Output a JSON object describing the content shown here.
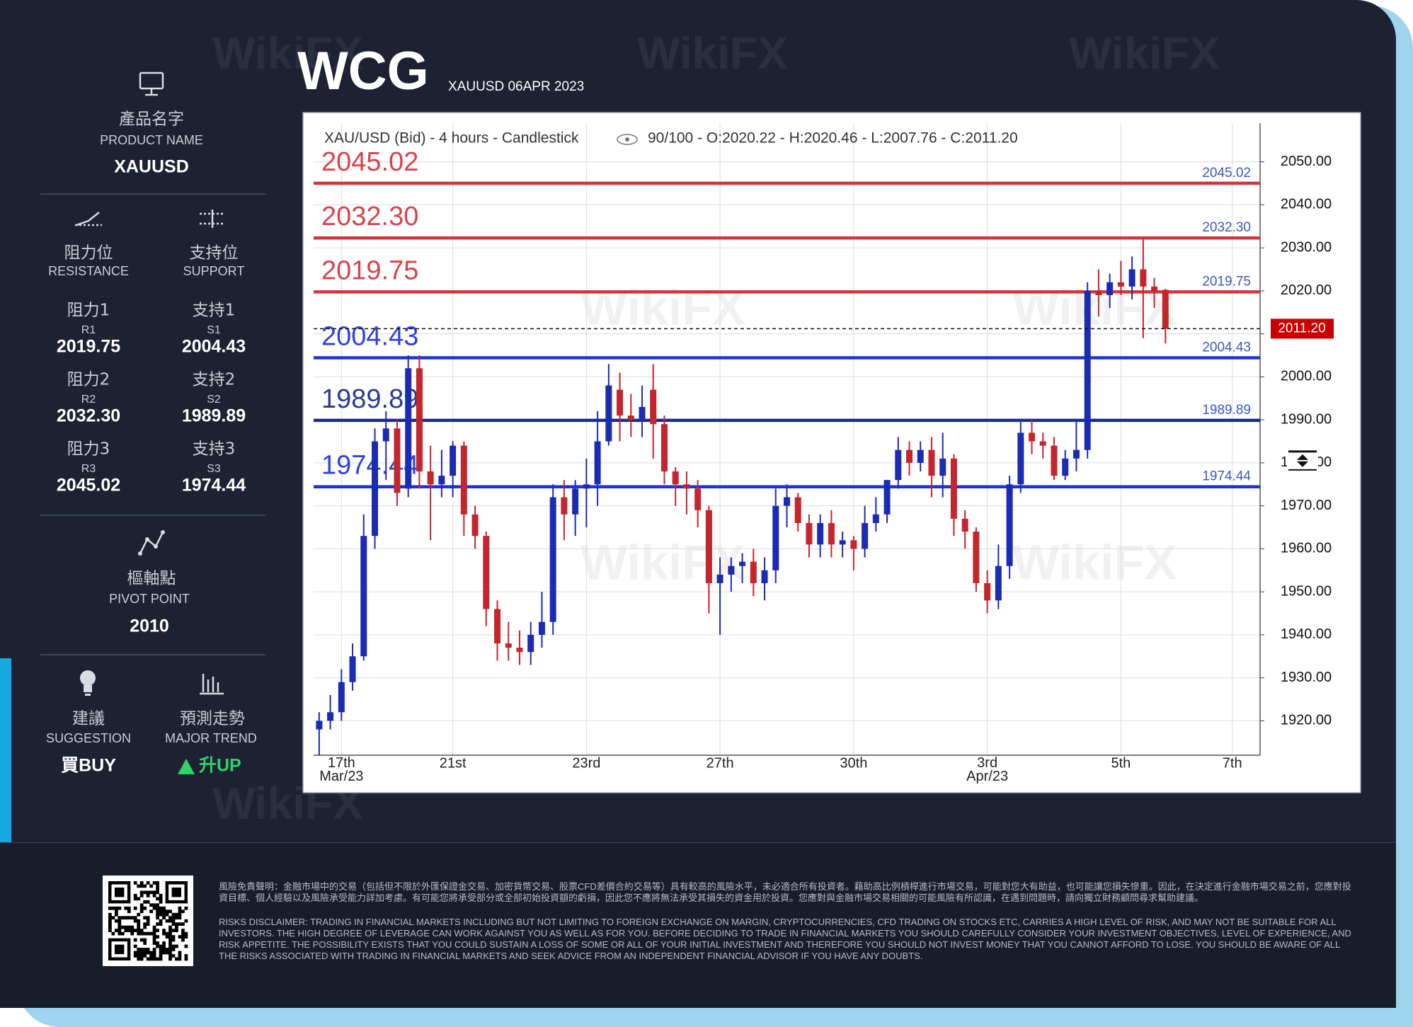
{
  "header": {
    "logo": "WCG",
    "subtitle": "XAUUSD 06APR 2023"
  },
  "watermark": "WikiFX",
  "sidebar": {
    "product": {
      "label_zh": "產品名字",
      "label_en": "PRODUCT NAME",
      "value": "XAUUSD"
    },
    "resistance": {
      "label_zh": "阻力位",
      "label_en": "RESISTANCE",
      "levels": [
        {
          "label_zh": "阻力1",
          "code": "R1",
          "value": "2019.75"
        },
        {
          "label_zh": "阻力2",
          "code": "R2",
          "value": "2032.30"
        },
        {
          "label_zh": "阻力3",
          "code": "R3",
          "value": "2045.02"
        }
      ]
    },
    "support": {
      "label_zh": "支持位",
      "label_en": "SUPPORT",
      "levels": [
        {
          "label_zh": "支持1",
          "code": "S1",
          "value": "2004.43"
        },
        {
          "label_zh": "支持2",
          "code": "S2",
          "value": "1989.89"
        },
        {
          "label_zh": "支持3",
          "code": "S3",
          "value": "1974.44"
        }
      ]
    },
    "pivot": {
      "label_zh": "樞軸點",
      "label_en": "PIVOT POINT",
      "value": "2010"
    },
    "suggestion": {
      "label_zh": "建議",
      "label_en": "SUGGESTION",
      "value": "買BUY"
    },
    "trend": {
      "label_zh": "預測走勢",
      "label_en": "MAJOR TREND",
      "value": "升UP"
    }
  },
  "chart_data": {
    "type": "candlestick",
    "title": "XAU/USD (Bid) - 4 hours - Candlestick",
    "subtitle": "90/100 - O:2020.22 - H:2020.46 - L:2007.76 - C:2011.20",
    "categories": [
      null,
      null,
      "17th\nMar/23",
      null,
      null,
      null,
      null,
      null,
      null,
      null,
      null,
      null,
      "21st",
      null,
      null,
      null,
      null,
      null,
      null,
      null,
      null,
      null,
      null,
      null,
      "23rd",
      null,
      null,
      null,
      null,
      null,
      null,
      null,
      null,
      null,
      null,
      null,
      "27th",
      null,
      null,
      null,
      null,
      null,
      null,
      null,
      null,
      null,
      null,
      null,
      "30th",
      null,
      null,
      null,
      null,
      null,
      null,
      null,
      null,
      null,
      null,
      null,
      "3rd\nApr/23",
      null,
      null,
      null,
      null,
      null,
      null,
      null,
      null,
      null,
      null,
      null,
      "5th",
      null,
      null,
      null,
      null,
      null,
      null,
      null,
      null,
      null,
      "7th",
      null,
      null
    ],
    "open": [
      1918,
      1920,
      1922,
      1929,
      1935,
      1963,
      1985,
      1988,
      1974,
      2002,
      1978,
      1975,
      1977,
      1984,
      1968,
      1963,
      1946,
      1938,
      1937,
      1936,
      1940,
      1943,
      1972,
      1968,
      1974,
      1975,
      1985,
      1997,
      1991,
      1990,
      1997,
      1989,
      1978,
      1975,
      1974,
      1969,
      1952,
      1954,
      1956,
      1957,
      1952,
      1955,
      1970,
      1972,
      1966,
      1961,
      1966,
      1961,
      1962,
      1960,
      1966,
      1968,
      1976,
      1983,
      1980,
      1983,
      1977,
      1981,
      1967,
      1964,
      1952,
      1948,
      1956,
      1975,
      1987,
      1985,
      1984,
      1977,
      1981,
      1983,
      2020,
      2019,
      2022,
      2021,
      2025,
      2021,
      2020.22,
      null,
      null,
      null,
      null,
      null,
      null,
      null,
      null
    ],
    "high": [
      1922,
      1926,
      1932,
      1938,
      1968,
      1988,
      1992,
      1990,
      2005,
      2005,
      1984,
      1983,
      1985,
      1985,
      1970,
      1964,
      1948,
      1943,
      1941,
      1943,
      1950,
      1975,
      1976,
      1976,
      1981,
      1992,
      2003,
      2001,
      1996,
      1998,
      2003,
      1991,
      1979,
      1978,
      1976,
      1970,
      1958,
      1958,
      1959,
      1960,
      1958,
      1974,
      1975,
      1973,
      1968,
      1968,
      1969,
      1964,
      1963,
      1970,
      1972,
      1976,
      1986,
      1985,
      1985,
      1986,
      1987,
      1982,
      1969,
      1965,
      1955,
      1961,
      1977,
      1990,
      1990,
      1987,
      1986,
      1983,
      1990,
      2022,
      2025,
      2024,
      2027,
      2028,
      2032,
      2023,
      2020.46,
      null,
      null,
      null,
      null,
      null,
      null,
      null,
      null
    ],
    "low": [
      1912,
      1918,
      1920,
      1927,
      1934,
      1960,
      1976,
      1970,
      1972,
      1974,
      1962,
      1972,
      1972,
      1963,
      1960,
      1942,
      1934,
      1934,
      1933,
      1933,
      1937,
      1940,
      1962,
      1963,
      1965,
      1970,
      1984,
      1985,
      1986,
      1986,
      1981,
      1975,
      1970,
      1968,
      1965,
      1945,
      1940,
      1950,
      1952,
      1949,
      1948,
      1952,
      1965,
      1964,
      1958,
      1958,
      1958,
      1958,
      1955,
      1958,
      1964,
      1966,
      1974,
      1977,
      1978,
      1972,
      1972,
      1963,
      1960,
      1950,
      1945,
      1946,
      1953,
      1973,
      1982,
      1981,
      1976,
      1976,
      1978,
      1981,
      2014,
      2016,
      2019,
      2018,
      2009,
      2016,
      2007.76,
      null,
      null,
      null,
      null,
      null,
      null,
      null,
      null
    ],
    "close": [
      1920,
      1922,
      1929,
      1935,
      1963,
      1985,
      1988,
      1973,
      2002,
      1978,
      1975,
      1977,
      1984,
      1968,
      1963,
      1946,
      1938,
      1937,
      1936,
      1940,
      1943,
      1972,
      1968,
      1974,
      1975,
      1985,
      1998,
      1991,
      1990,
      1993,
      1989,
      1978,
      1975,
      1974,
      1969,
      1952,
      1954,
      1956,
      1957,
      1952,
      1955,
      1970,
      1972,
      1966,
      1961,
      1966,
      1961,
      1962,
      1960,
      1966,
      1968,
      1976,
      1983,
      1980,
      1983,
      1977,
      1981,
      1967,
      1964,
      1952,
      1948,
      1956,
      1975,
      1987,
      1985,
      1984,
      1977,
      1981,
      1983,
      2020,
      2019,
      2022,
      2021,
      2025,
      2021,
      2020,
      2011.2,
      null,
      null,
      null,
      null,
      null,
      null,
      null,
      null
    ],
    "up_color": "#1c2bb3",
    "down_color": "#c3262c",
    "ylim": [
      1912,
      2059
    ],
    "yticks": [
      {
        "value": 1920,
        "label": "1920.00"
      },
      {
        "value": 1930,
        "label": "1930.00"
      },
      {
        "value": 1940,
        "label": "1940.00"
      },
      {
        "value": 1950,
        "label": "1950.00"
      },
      {
        "value": 1960,
        "label": "1960.00"
      },
      {
        "value": 1970,
        "label": "1970.00"
      },
      {
        "value": 1980,
        "label": "1980.00"
      },
      {
        "value": 1990,
        "label": "1990.00"
      },
      {
        "value": 2000,
        "label": "2000.00"
      },
      {
        "value": 2010,
        "label": "2010.00"
      },
      {
        "value": 2020,
        "label": "2020.00"
      },
      {
        "value": 2030,
        "label": "2030.00"
      },
      {
        "value": 2040,
        "label": "2040.00"
      },
      {
        "value": 2050,
        "label": "2050.00"
      }
    ],
    "grid": true,
    "levels": [
      {
        "value": 2045.02,
        "label": "2045.02",
        "color": "#d2353c"
      },
      {
        "value": 2032.3,
        "label": "2032.30",
        "color": "#d2353c"
      },
      {
        "value": 2019.75,
        "label": "2019.75",
        "color": "#d2353c"
      },
      {
        "value": 2004.43,
        "label": "2004.43",
        "color": "#1f33d6"
      },
      {
        "value": 1989.89,
        "label": "1989.89",
        "color": "#1a2a8c"
      },
      {
        "value": 1974.44,
        "label": "1974.44",
        "color": "#1f33d6"
      }
    ],
    "last": {
      "value": 2011.2,
      "label": "2011.20",
      "color": "#c80000"
    }
  },
  "disclaimer": {
    "zh": "風險免責聲明：金融市場中的交易（包括但不限於外匯保證金交易、加密貨幣交易、股票CFD差價合約交易等）具有較高的風險水平，未必適合所有投資者。藉助高比例槓桿進行市場交易，可能對您大有助益，也可能讓您損失慘重。因此，在決定進行金融市場交易之前，您應對投資目標、個人經驗以及風險承受能力詳加考慮。有可能您將承受部分或全部初始投資額的虧損，因此您不應將無法承受其損失的資金用於投資。您應對與金融市場交易相關的可能風險有所認識，在遇到問題時，請向獨立財務顧問尋求幫助建議。",
    "en": "RISKS DISCLAIMER: TRADING IN FINANCIAL MARKETS INCLUDING BUT NOT LIMITING TO FOREIGN EXCHANGE ON MARGIN, CRYPTOCURRENCIES, CFD TRADING ON STOCKS ETC, CARRIES A HIGH LEVEL OF RISK, AND MAY NOT BE SUITABLE FOR ALL INVESTORS. THE HIGH DEGREE OF LEVERAGE CAN WORK AGAINST YOU AS WELL AS FOR YOU. BEFORE DECIDING TO TRADE IN FINANCIAL MARKETS YOU SHOULD CAREFULLY CONSIDER YOUR INVESTMENT OBJECTIVES, LEVEL OF EXPERIENCE, AND RISK APPETITE. THE POSSIBILITY EXISTS THAT YOU COULD SUSTAIN A LOSS OF SOME OR ALL OF YOUR INITIAL INVESTMENT AND THEREFORE YOU SHOULD NOT INVEST MONEY THAT YOU CANNOT AFFORD TO LOSE. YOU SHOULD BE AWARE OF ALL THE RISKS ASSOCIATED WITH TRADING IN FINANCIAL MARKETS AND SEEK ADVICE FROM AN INDEPENDENT FINANCIAL ADVISOR IF YOU HAVE ANY DOUBTS."
  }
}
